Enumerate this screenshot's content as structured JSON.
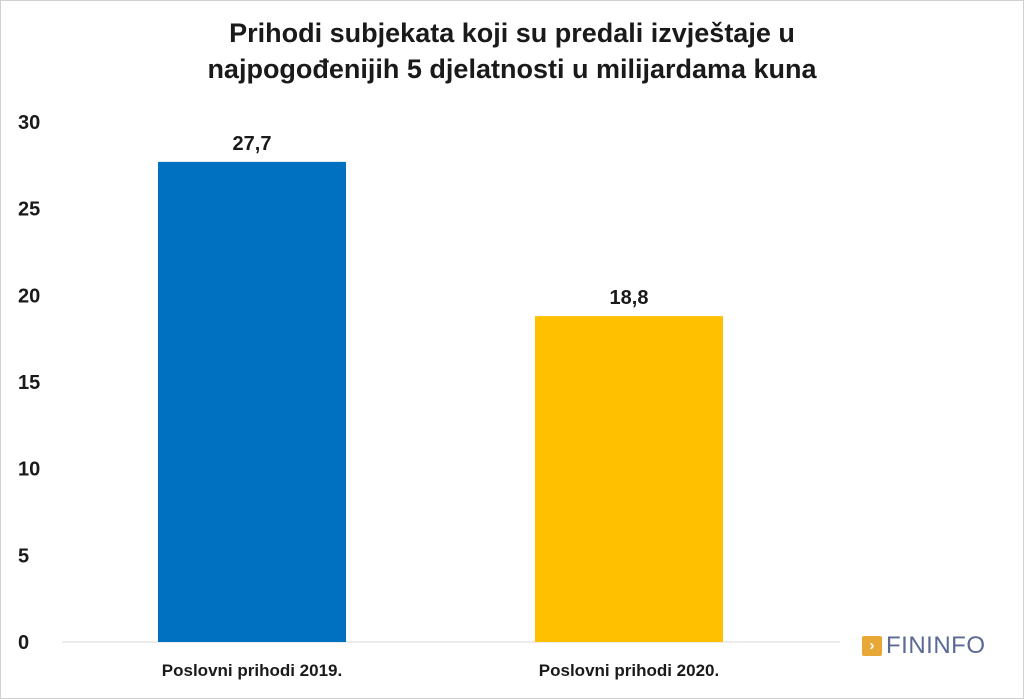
{
  "chart_data": {
    "type": "bar",
    "title_lines": [
      "Prihodi subjekata koji su predali izvještaje u",
      "najpogođenijih 5 djelatnosti u milijardama kuna"
    ],
    "categories": [
      "Poslovni prihodi 2019.",
      "Poslovni prihodi 2020."
    ],
    "values": [
      27.7,
      18.8
    ],
    "value_labels": [
      "27,7",
      "18,8"
    ],
    "colors": [
      "#0070c0",
      "#ffc000"
    ],
    "ylim": [
      0,
      30
    ],
    "yticks": [
      0,
      5,
      10,
      15,
      20,
      25,
      30
    ],
    "grid": false,
    "xlabel": "",
    "ylabel": ""
  },
  "logo": {
    "text": "FININFO",
    "color": "#5a6a94",
    "mark_color": "#e8a838"
  }
}
